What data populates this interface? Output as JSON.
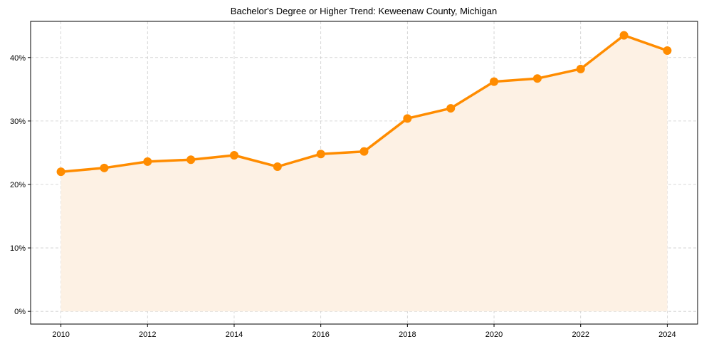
{
  "chart_data": {
    "type": "line",
    "title": "Bachelor's Degree or Higher Trend: Keweenaw County, Michigan",
    "xlabel": "",
    "ylabel": "",
    "x": [
      2010,
      2011,
      2012,
      2013,
      2014,
      2015,
      2016,
      2017,
      2018,
      2019,
      2020,
      2021,
      2022,
      2023,
      2024
    ],
    "series": [
      {
        "name": "Bachelor's Degree or Higher",
        "color": "#ff8c00",
        "values": [
          22.0,
          22.6,
          23.6,
          23.9,
          24.6,
          22.8,
          24.8,
          25.2,
          30.4,
          32.0,
          36.2,
          36.7,
          38.2,
          43.5,
          41.1
        ]
      }
    ],
    "xlim": [
      2009.3,
      2024.7
    ],
    "ylim": [
      -2.0,
      45.7
    ],
    "xticks": [
      2010,
      2012,
      2014,
      2016,
      2018,
      2020,
      2022,
      2024
    ],
    "xtick_labels": [
      "2010",
      "2012",
      "2014",
      "2016",
      "2018",
      "2020",
      "2022",
      "2024"
    ],
    "yticks": [
      0,
      10,
      20,
      30,
      40
    ],
    "ytick_labels": [
      "0%",
      "10%",
      "20%",
      "30%",
      "40%"
    ],
    "grid": true,
    "fill_color": "#fdf1e4"
  }
}
